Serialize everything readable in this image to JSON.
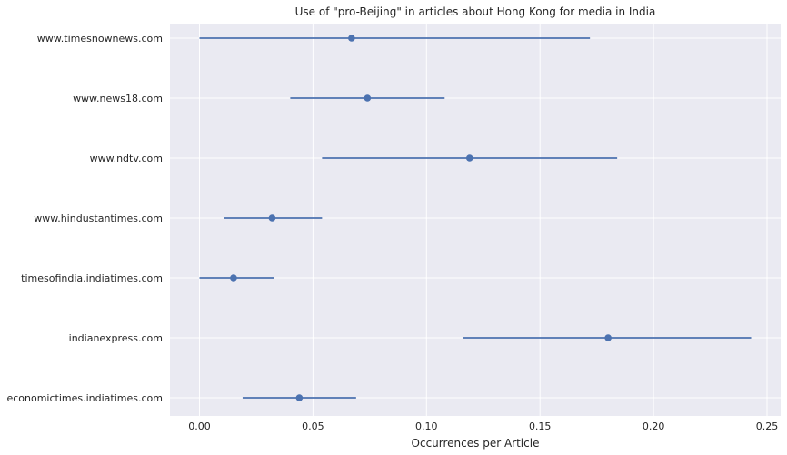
{
  "chart_data": {
    "type": "scatter",
    "title": "Use of \"pro-Beijing\" in articles about Hong Kong for media in India",
    "xlabel": "Occurrences per Article",
    "ylabel": "",
    "xlim": [
      -0.013,
      0.256
    ],
    "xticks": [
      0.0,
      0.05,
      0.1,
      0.15,
      0.2,
      0.25
    ],
    "xtick_labels": [
      "0.00",
      "0.05",
      "0.10",
      "0.15",
      "0.20",
      "0.25"
    ],
    "categories": [
      "www.timesnownews.com",
      "www.news18.com",
      "www.ndtv.com",
      "www.hindustantimes.com",
      "timesofindia.indiatimes.com",
      "indianexpress.com",
      "economictimes.indiatimes.com"
    ],
    "values": [
      0.067,
      0.074,
      0.119,
      0.032,
      0.015,
      0.18,
      0.044
    ],
    "lower": [
      0.0,
      0.04,
      0.054,
      0.011,
      0.0,
      0.116,
      0.019
    ],
    "upper": [
      0.172,
      0.108,
      0.184,
      0.054,
      0.033,
      0.243,
      0.069
    ],
    "grid": true,
    "colors": {
      "marker": "#4c72b0",
      "plot_background": "#eaeaf2",
      "grid": "#ffffff"
    }
  }
}
